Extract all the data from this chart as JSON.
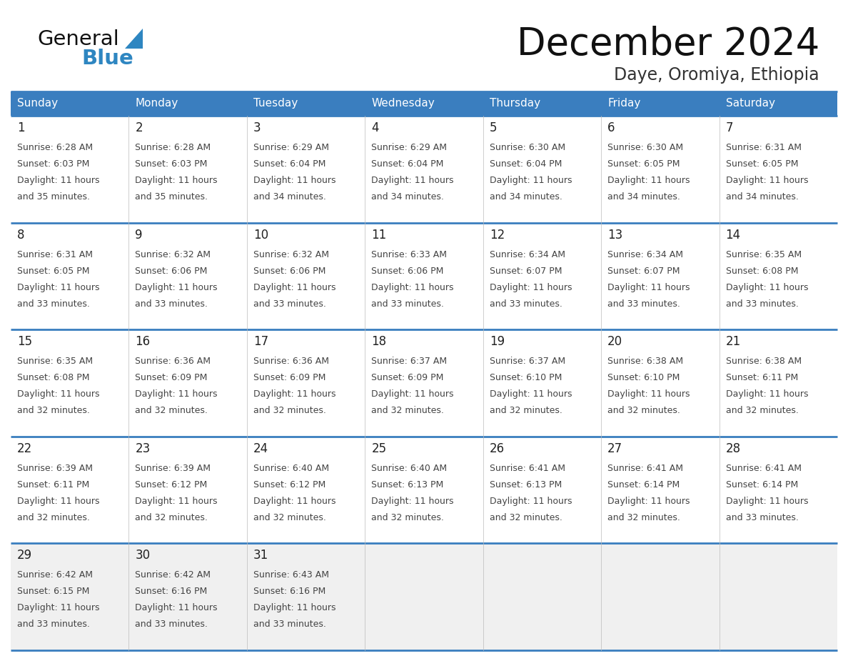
{
  "title": "December 2024",
  "subtitle": "Daye, Oromiya, Ethiopia",
  "days_of_week": [
    "Sunday",
    "Monday",
    "Tuesday",
    "Wednesday",
    "Thursday",
    "Friday",
    "Saturday"
  ],
  "header_bg": "#3a7ebf",
  "header_text": "#FFFFFF",
  "cell_bg": "#FFFFFF",
  "last_row_bg": "#F0F0F0",
  "border_color": "#3a7ebf",
  "day_number_color": "#222222",
  "cell_text_color": "#444444",
  "title_color": "#111111",
  "subtitle_color": "#333333",
  "logo_color_general": "#111111",
  "logo_color_blue": "#2E86C1",
  "calendar_data": [
    [
      {
        "day": "1",
        "sunrise": "6:28 AM",
        "sunset": "6:03 PM",
        "daylight_h": "11 hours",
        "daylight_m": "and 35 minutes."
      },
      {
        "day": "2",
        "sunrise": "6:28 AM",
        "sunset": "6:03 PM",
        "daylight_h": "11 hours",
        "daylight_m": "and 35 minutes."
      },
      {
        "day": "3",
        "sunrise": "6:29 AM",
        "sunset": "6:04 PM",
        "daylight_h": "11 hours",
        "daylight_m": "and 34 minutes."
      },
      {
        "day": "4",
        "sunrise": "6:29 AM",
        "sunset": "6:04 PM",
        "daylight_h": "11 hours",
        "daylight_m": "and 34 minutes."
      },
      {
        "day": "5",
        "sunrise": "6:30 AM",
        "sunset": "6:04 PM",
        "daylight_h": "11 hours",
        "daylight_m": "and 34 minutes."
      },
      {
        "day": "6",
        "sunrise": "6:30 AM",
        "sunset": "6:05 PM",
        "daylight_h": "11 hours",
        "daylight_m": "and 34 minutes."
      },
      {
        "day": "7",
        "sunrise": "6:31 AM",
        "sunset": "6:05 PM",
        "daylight_h": "11 hours",
        "daylight_m": "and 34 minutes."
      }
    ],
    [
      {
        "day": "8",
        "sunrise": "6:31 AM",
        "sunset": "6:05 PM",
        "daylight_h": "11 hours",
        "daylight_m": "and 33 minutes."
      },
      {
        "day": "9",
        "sunrise": "6:32 AM",
        "sunset": "6:06 PM",
        "daylight_h": "11 hours",
        "daylight_m": "and 33 minutes."
      },
      {
        "day": "10",
        "sunrise": "6:32 AM",
        "sunset": "6:06 PM",
        "daylight_h": "11 hours",
        "daylight_m": "and 33 minutes."
      },
      {
        "day": "11",
        "sunrise": "6:33 AM",
        "sunset": "6:06 PM",
        "daylight_h": "11 hours",
        "daylight_m": "and 33 minutes."
      },
      {
        "day": "12",
        "sunrise": "6:34 AM",
        "sunset": "6:07 PM",
        "daylight_h": "11 hours",
        "daylight_m": "and 33 minutes."
      },
      {
        "day": "13",
        "sunrise": "6:34 AM",
        "sunset": "6:07 PM",
        "daylight_h": "11 hours",
        "daylight_m": "and 33 minutes."
      },
      {
        "day": "14",
        "sunrise": "6:35 AM",
        "sunset": "6:08 PM",
        "daylight_h": "11 hours",
        "daylight_m": "and 33 minutes."
      }
    ],
    [
      {
        "day": "15",
        "sunrise": "6:35 AM",
        "sunset": "6:08 PM",
        "daylight_h": "11 hours",
        "daylight_m": "and 32 minutes."
      },
      {
        "day": "16",
        "sunrise": "6:36 AM",
        "sunset": "6:09 PM",
        "daylight_h": "11 hours",
        "daylight_m": "and 32 minutes."
      },
      {
        "day": "17",
        "sunrise": "6:36 AM",
        "sunset": "6:09 PM",
        "daylight_h": "11 hours",
        "daylight_m": "and 32 minutes."
      },
      {
        "day": "18",
        "sunrise": "6:37 AM",
        "sunset": "6:09 PM",
        "daylight_h": "11 hours",
        "daylight_m": "and 32 minutes."
      },
      {
        "day": "19",
        "sunrise": "6:37 AM",
        "sunset": "6:10 PM",
        "daylight_h": "11 hours",
        "daylight_m": "and 32 minutes."
      },
      {
        "day": "20",
        "sunrise": "6:38 AM",
        "sunset": "6:10 PM",
        "daylight_h": "11 hours",
        "daylight_m": "and 32 minutes."
      },
      {
        "day": "21",
        "sunrise": "6:38 AM",
        "sunset": "6:11 PM",
        "daylight_h": "11 hours",
        "daylight_m": "and 32 minutes."
      }
    ],
    [
      {
        "day": "22",
        "sunrise": "6:39 AM",
        "sunset": "6:11 PM",
        "daylight_h": "11 hours",
        "daylight_m": "and 32 minutes."
      },
      {
        "day": "23",
        "sunrise": "6:39 AM",
        "sunset": "6:12 PM",
        "daylight_h": "11 hours",
        "daylight_m": "and 32 minutes."
      },
      {
        "day": "24",
        "sunrise": "6:40 AM",
        "sunset": "6:12 PM",
        "daylight_h": "11 hours",
        "daylight_m": "and 32 minutes."
      },
      {
        "day": "25",
        "sunrise": "6:40 AM",
        "sunset": "6:13 PM",
        "daylight_h": "11 hours",
        "daylight_m": "and 32 minutes."
      },
      {
        "day": "26",
        "sunrise": "6:41 AM",
        "sunset": "6:13 PM",
        "daylight_h": "11 hours",
        "daylight_m": "and 32 minutes."
      },
      {
        "day": "27",
        "sunrise": "6:41 AM",
        "sunset": "6:14 PM",
        "daylight_h": "11 hours",
        "daylight_m": "and 32 minutes."
      },
      {
        "day": "28",
        "sunrise": "6:41 AM",
        "sunset": "6:14 PM",
        "daylight_h": "11 hours",
        "daylight_m": "and 33 minutes."
      }
    ],
    [
      {
        "day": "29",
        "sunrise": "6:42 AM",
        "sunset": "6:15 PM",
        "daylight_h": "11 hours",
        "daylight_m": "and 33 minutes."
      },
      {
        "day": "30",
        "sunrise": "6:42 AM",
        "sunset": "6:16 PM",
        "daylight_h": "11 hours",
        "daylight_m": "and 33 minutes."
      },
      {
        "day": "31",
        "sunrise": "6:43 AM",
        "sunset": "6:16 PM",
        "daylight_h": "11 hours",
        "daylight_m": "and 33 minutes."
      },
      null,
      null,
      null,
      null
    ]
  ]
}
